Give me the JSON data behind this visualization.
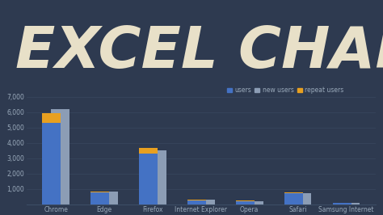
{
  "title": "EXCEL CHART",
  "background_color": "#2e3a50",
  "chart_bg_color": "#2e3a50",
  "categories": [
    "Chrome",
    "Edge",
    "Firefox",
    "Internet Explorer",
    "Opera",
    "Safari",
    "Samsung Internet"
  ],
  "users": [
    5300,
    750,
    3300,
    250,
    180,
    700,
    70
  ],
  "new_users": [
    6200,
    820,
    3500,
    290,
    200,
    730,
    75
  ],
  "repeat_users_abs": [
    650,
    90,
    380,
    70,
    45,
    90,
    15
  ],
  "users_color": "#4472c4",
  "new_users_color": "#8c9db5",
  "repeat_users_color": "#e8a020",
  "ylim": [
    0,
    7000
  ],
  "yticks": [
    1000,
    2000,
    3000,
    4000,
    5000,
    6000,
    7000
  ],
  "title_fontsize": 52,
  "title_color": "#e8e0c8",
  "legend_fontsize": 5.5,
  "tick_fontsize": 5.5,
  "tick_color": "#9aaabb",
  "grid_color": "#3d4d65",
  "bar_width": 0.38,
  "bar_gap": 0.18
}
